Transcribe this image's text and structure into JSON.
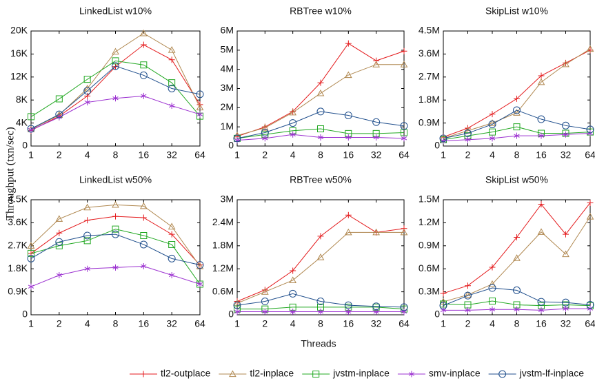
{
  "ylabel": "Throughput (txn/sec)",
  "xlabel": "Threads",
  "chart_data": [
    {
      "type": "line",
      "title": "LinkedList w10%",
      "x": [
        1,
        2,
        4,
        8,
        16,
        32,
        64
      ],
      "xscale": "log2",
      "xlim": [
        1,
        64
      ],
      "xticks": [
        1,
        2,
        4,
        8,
        16,
        32,
        64
      ],
      "ylim": [
        0,
        20000
      ],
      "yticks": [
        0,
        {
          "value": 4000,
          "label": "4K"
        },
        {
          "value": 8000,
          "label": "8K"
        },
        {
          "value": 12000,
          "label": "12K"
        },
        {
          "value": 16000,
          "label": "16K"
        },
        {
          "value": 20000,
          "label": "20K"
        }
      ],
      "series": [
        {
          "name": "tl2-outplace",
          "color": "#e41a1c",
          "marker": "plus",
          "values": [
            2700,
            5200,
            8700,
            13800,
            17600,
            15000,
            7200
          ]
        },
        {
          "name": "tl2-inplace",
          "color": "#b08850",
          "marker": "triangle",
          "values": [
            2900,
            5400,
            10000,
            16400,
            19600,
            16700,
            6700
          ]
        },
        {
          "name": "jvstm-inplace",
          "color": "#22a822",
          "marker": "square",
          "values": [
            5100,
            8200,
            11600,
            14800,
            14100,
            11000,
            5200
          ]
        },
        {
          "name": "smv-inplace",
          "color": "#9b30d0",
          "marker": "star",
          "values": [
            2800,
            5000,
            7600,
            8300,
            8700,
            7000,
            5500
          ]
        },
        {
          "name": "jvstm-lf-inplace",
          "color": "#1f4e8c",
          "marker": "circle",
          "values": [
            3000,
            5500,
            9600,
            13900,
            12300,
            10000,
            9000
          ]
        }
      ]
    },
    {
      "type": "line",
      "title": "RBTree w10%",
      "x": [
        1,
        2,
        4,
        8,
        16,
        32,
        64
      ],
      "xscale": "log2",
      "xlim": [
        1,
        64
      ],
      "xticks": [
        1,
        2,
        4,
        8,
        16,
        32,
        64
      ],
      "ylim": [
        0,
        6000000
      ],
      "yticks": [
        0,
        {
          "value": 1000000,
          "label": "1M"
        },
        {
          "value": 2000000,
          "label": "2M"
        },
        {
          "value": 3000000,
          "label": "3M"
        },
        {
          "value": 4000000,
          "label": "4M"
        },
        {
          "value": 5000000,
          "label": "5M"
        },
        {
          "value": 6000000,
          "label": "6M"
        }
      ],
      "series": [
        {
          "name": "tl2-outplace",
          "color": "#e41a1c",
          "marker": "plus",
          "values": [
            500000,
            1000000,
            1800000,
            3300000,
            5350000,
            4450000,
            4950000
          ]
        },
        {
          "name": "tl2-inplace",
          "color": "#b08850",
          "marker": "triangle",
          "values": [
            550000,
            950000,
            1750000,
            2750000,
            3700000,
            4250000,
            4250000
          ]
        },
        {
          "name": "jvstm-inplace",
          "color": "#22a822",
          "marker": "square",
          "values": [
            400000,
            600000,
            800000,
            900000,
            650000,
            650000,
            700000
          ]
        },
        {
          "name": "smv-inplace",
          "color": "#9b30d0",
          "marker": "star",
          "values": [
            300000,
            400000,
            600000,
            450000,
            450000,
            450000,
            400000
          ]
        },
        {
          "name": "jvstm-lf-inplace",
          "color": "#1f4e8c",
          "marker": "circle",
          "values": [
            400000,
            700000,
            1200000,
            1800000,
            1600000,
            1250000,
            1050000
          ]
        }
      ]
    },
    {
      "type": "line",
      "title": "SkipList w10%",
      "x": [
        1,
        2,
        4,
        8,
        16,
        32,
        64
      ],
      "xscale": "log2",
      "xlim": [
        1,
        64
      ],
      "xticks": [
        1,
        2,
        4,
        8,
        16,
        32,
        64
      ],
      "ylim": [
        0,
        4500000
      ],
      "yticks": [
        0,
        {
          "value": 900000,
          "label": "0.9M"
        },
        {
          "value": 1800000,
          "label": "1.8M"
        },
        {
          "value": 2700000,
          "label": "2.7M"
        },
        {
          "value": 3600000,
          "label": "3.6M"
        },
        {
          "value": 4500000,
          "label": "4.5M"
        }
      ],
      "series": [
        {
          "name": "tl2-outplace",
          "color": "#e41a1c",
          "marker": "plus",
          "values": [
            350000,
            700000,
            1250000,
            1850000,
            2750000,
            3250000,
            3750000
          ]
        },
        {
          "name": "tl2-inplace",
          "color": "#b08850",
          "marker": "triangle",
          "values": [
            300000,
            600000,
            900000,
            1300000,
            2500000,
            3200000,
            3800000
          ]
        },
        {
          "name": "jvstm-inplace",
          "color": "#22a822",
          "marker": "square",
          "values": [
            250000,
            400000,
            550000,
            750000,
            500000,
            500000,
            550000
          ]
        },
        {
          "name": "smv-inplace",
          "color": "#9b30d0",
          "marker": "star",
          "values": [
            200000,
            250000,
            300000,
            400000,
            400000,
            450000,
            500000
          ]
        },
        {
          "name": "jvstm-lf-inplace",
          "color": "#1f4e8c",
          "marker": "circle",
          "values": [
            300000,
            500000,
            850000,
            1400000,
            1050000,
            800000,
            650000
          ]
        }
      ]
    },
    {
      "type": "line",
      "title": "LinkedList w50%",
      "x": [
        1,
        2,
        4,
        8,
        16,
        32,
        64
      ],
      "xscale": "log2",
      "xlim": [
        1,
        64
      ],
      "xticks": [
        1,
        2,
        4,
        8,
        16,
        32,
        64
      ],
      "ylim": [
        0,
        4500
      ],
      "yticks": [
        0,
        {
          "value": 900,
          "label": "0.9K"
        },
        {
          "value": 1800,
          "label": "1.8K"
        },
        {
          "value": 2700,
          "label": "2.7K"
        },
        {
          "value": 3600,
          "label": "3.6K"
        },
        {
          "value": 4500,
          "label": "4.5K"
        }
      ],
      "series": [
        {
          "name": "tl2-outplace",
          "color": "#e41a1c",
          "marker": "plus",
          "values": [
            2400,
            3200,
            3700,
            3850,
            3800,
            3150,
            1950
          ]
        },
        {
          "name": "tl2-inplace",
          "color": "#b08850",
          "marker": "triangle",
          "values": [
            2700,
            3750,
            4200,
            4300,
            4250,
            3450,
            1900
          ]
        },
        {
          "name": "jvstm-inplace",
          "color": "#22a822",
          "marker": "square",
          "values": [
            2400,
            2700,
            2900,
            3350,
            3100,
            2750,
            1200
          ]
        },
        {
          "name": "smv-inplace",
          "color": "#9b30d0",
          "marker": "star",
          "values": [
            1100,
            1550,
            1800,
            1850,
            1900,
            1550,
            1200
          ]
        },
        {
          "name": "jvstm-lf-inplace",
          "color": "#1f4e8c",
          "marker": "circle",
          "values": [
            2200,
            2850,
            3100,
            3150,
            2750,
            2200,
            1950
          ]
        }
      ]
    },
    {
      "type": "line",
      "title": "RBTree w50%",
      "x": [
        1,
        2,
        4,
        8,
        16,
        32,
        64
      ],
      "xscale": "log2",
      "xlim": [
        1,
        64
      ],
      "xticks": [
        1,
        2,
        4,
        8,
        16,
        32,
        64
      ],
      "ylim": [
        0,
        3000000
      ],
      "yticks": [
        0,
        {
          "value": 600000,
          "label": "0.6M"
        },
        {
          "value": 1200000,
          "label": "1.2M"
        },
        {
          "value": 1800000,
          "label": "1.8M"
        },
        {
          "value": 2400000,
          "label": "2.4M"
        },
        {
          "value": 3000000,
          "label": "3M"
        }
      ],
      "series": [
        {
          "name": "tl2-outplace",
          "color": "#e41a1c",
          "marker": "plus",
          "values": [
            350000,
            650000,
            1150000,
            2050000,
            2600000,
            2150000,
            2250000
          ]
        },
        {
          "name": "tl2-inplace",
          "color": "#b08850",
          "marker": "triangle",
          "values": [
            300000,
            600000,
            900000,
            1500000,
            2150000,
            2150000,
            2150000
          ]
        },
        {
          "name": "jvstm-inplace",
          "color": "#22a822",
          "marker": "square",
          "values": [
            150000,
            150000,
            200000,
            200000,
            200000,
            200000,
            150000
          ]
        },
        {
          "name": "smv-inplace",
          "color": "#9b30d0",
          "marker": "star",
          "values": [
            80000,
            80000,
            80000,
            80000,
            80000,
            80000,
            80000
          ]
        },
        {
          "name": "jvstm-lf-inplace",
          "color": "#1f4e8c",
          "marker": "circle",
          "values": [
            250000,
            350000,
            550000,
            350000,
            250000,
            220000,
            200000
          ]
        }
      ]
    },
    {
      "type": "line",
      "title": "SkipList w50%",
      "x": [
        1,
        2,
        4,
        8,
        16,
        32,
        64
      ],
      "xscale": "log2",
      "xlim": [
        1,
        64
      ],
      "xticks": [
        1,
        2,
        4,
        8,
        16,
        32,
        64
      ],
      "ylim": [
        0,
        1500000
      ],
      "yticks": [
        0,
        {
          "value": 300000,
          "label": "0.3M"
        },
        {
          "value": 600000,
          "label": "0.6M"
        },
        {
          "value": 900000,
          "label": "0.9M"
        },
        {
          "value": 1200000,
          "label": "1.2M"
        },
        {
          "value": 1500000,
          "label": "1.5M"
        }
      ],
      "series": [
        {
          "name": "tl2-outplace",
          "color": "#e41a1c",
          "marker": "plus",
          "values": [
            280000,
            380000,
            620000,
            1010000,
            1440000,
            1050000,
            1460000
          ]
        },
        {
          "name": "tl2-inplace",
          "color": "#b08850",
          "marker": "triangle",
          "values": [
            170000,
            260000,
            400000,
            740000,
            1080000,
            790000,
            1280000
          ]
        },
        {
          "name": "jvstm-inplace",
          "color": "#22a822",
          "marker": "square",
          "values": [
            140000,
            130000,
            180000,
            130000,
            120000,
            130000,
            120000
          ]
        },
        {
          "name": "smv-inplace",
          "color": "#9b30d0",
          "marker": "star",
          "values": [
            60000,
            60000,
            70000,
            70000,
            60000,
            80000,
            80000
          ]
        },
        {
          "name": "jvstm-lf-inplace",
          "color": "#1f4e8c",
          "marker": "circle",
          "values": [
            120000,
            250000,
            350000,
            320000,
            170000,
            160000,
            130000
          ]
        }
      ]
    }
  ]
}
